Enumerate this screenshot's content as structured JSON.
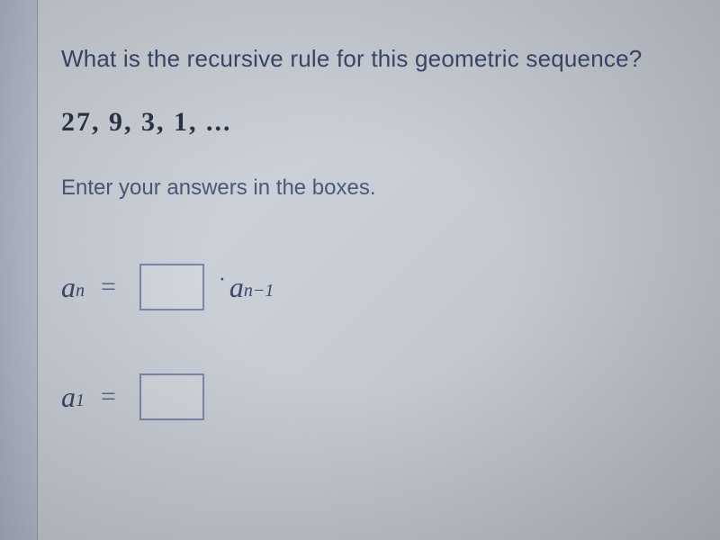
{
  "question": {
    "prompt": "What is the recursive rule for this geometric sequence?",
    "sequence": "27,  9,  3,  1,  ...",
    "instruction": "Enter your answers in the boxes."
  },
  "formula1": {
    "left_var": "a",
    "left_sub": "n",
    "right_var": "a",
    "right_sub": "n−1"
  },
  "formula2": {
    "left_var": "a",
    "left_sub": "1"
  },
  "colors": {
    "text_primary": "#3a4a6a",
    "text_bold": "#2a3548",
    "box_border": "#7a88a8",
    "background": "#c8ccd4"
  }
}
